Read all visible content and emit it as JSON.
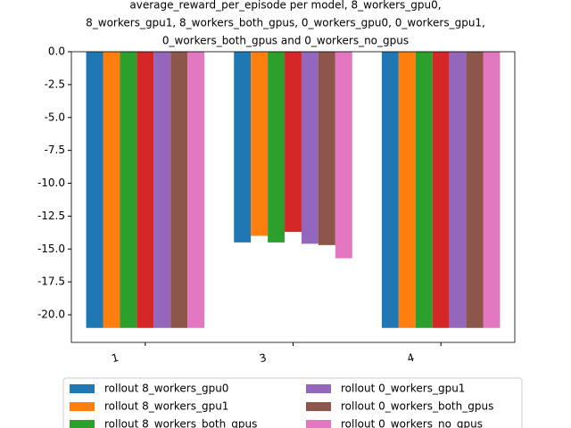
{
  "chart_data": {
    "type": "bar",
    "title": [
      "average_reward_per_episode per model, 8_workers_gpu0,",
      "8_workers_gpu1, 8_workers_both_gpus, 0_workers_gpu0, 0_workers_gpu1,",
      "0_workers_both_gpus and 0_workers_no_gpus"
    ],
    "categories": [
      "1",
      "3",
      "4"
    ],
    "series": [
      {
        "name": "rollout 8_workers_gpu0",
        "color": "#1f77b4",
        "values": [
          -21,
          -14.5,
          -21
        ]
      },
      {
        "name": "rollout 8_workers_gpu1",
        "color": "#ff7f0e",
        "values": [
          -21,
          -14.0,
          -21
        ]
      },
      {
        "name": "rollout 8_workers_both_gpus",
        "color": "#2ca02c",
        "values": [
          -21,
          -14.5,
          -21
        ]
      },
      {
        "name": "rollout 0_workers_gpu0",
        "color": "#d62728",
        "values": [
          -21,
          -13.7,
          -21
        ]
      },
      {
        "name": "rollout 0_workers_gpu1",
        "color": "#9467bd",
        "values": [
          -21,
          -14.6,
          -21
        ]
      },
      {
        "name": "rollout 0_workers_both_gpus",
        "color": "#8c564b",
        "values": [
          -21,
          -14.7,
          -21
        ]
      },
      {
        "name": "rollout 0_workers_no_gpus",
        "color": "#e377c2",
        "values": [
          -21,
          -15.7,
          -21
        ]
      }
    ],
    "ylim": [
      -22.1,
      0
    ],
    "yticks": [
      {
        "value": 0,
        "label": "0.0"
      },
      -2.5,
      {
        "value": -5,
        "label": "-5.0"
      },
      -7.5,
      {
        "value": -10,
        "label": "-10.0"
      },
      -12.5,
      {
        "value": -15,
        "label": "-15.0"
      },
      -17.5,
      {
        "value": -20,
        "label": "-20.0"
      }
    ],
    "legend": "below"
  }
}
